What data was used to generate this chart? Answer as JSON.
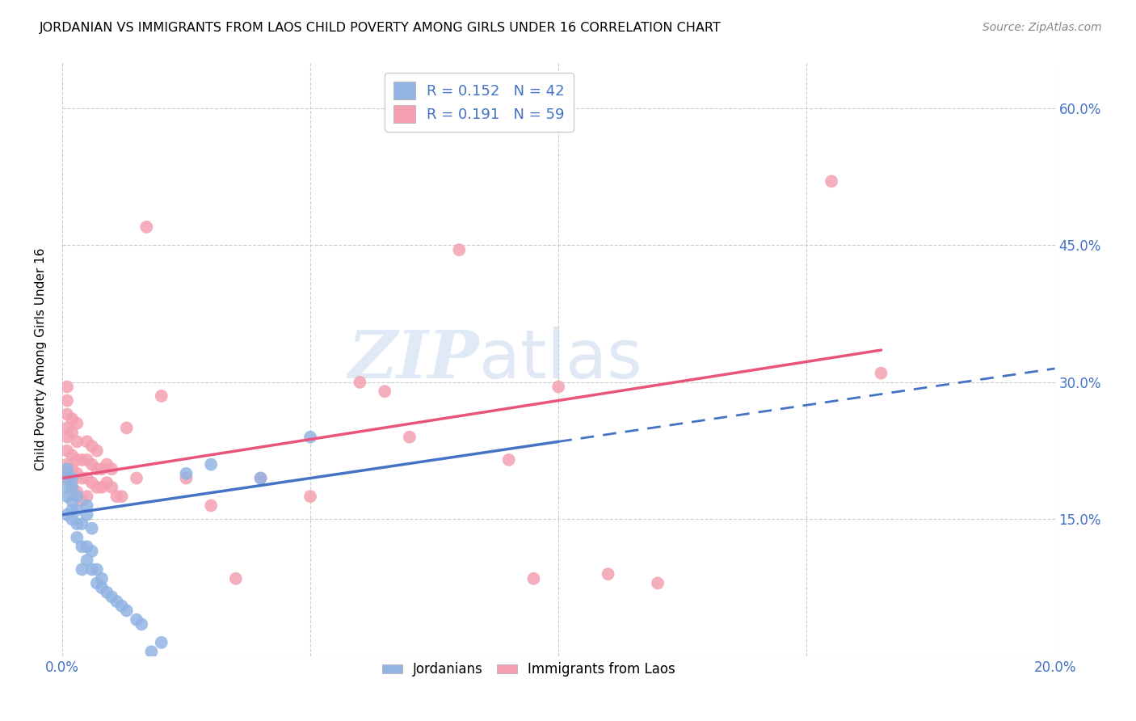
{
  "title": "JORDANIAN VS IMMIGRANTS FROM LAOS CHILD POVERTY AMONG GIRLS UNDER 16 CORRELATION CHART",
  "source": "Source: ZipAtlas.com",
  "ylabel": "Child Poverty Among Girls Under 16",
  "xmin": 0.0,
  "xmax": 0.2,
  "ymin": 0.0,
  "ymax": 0.65,
  "xticks": [
    0.0,
    0.05,
    0.1,
    0.15,
    0.2
  ],
  "xtick_labels": [
    "0.0%",
    "",
    "",
    "",
    "20.0%"
  ],
  "yticks": [
    0.0,
    0.15,
    0.3,
    0.45,
    0.6
  ],
  "ytick_labels": [
    "",
    "15.0%",
    "30.0%",
    "45.0%",
    "60.0%"
  ],
  "legend_R_blue": "0.152",
  "legend_N_blue": "42",
  "legend_R_pink": "0.191",
  "legend_N_pink": "59",
  "color_blue": "#92b4e3",
  "color_pink": "#f4a0b0",
  "color_blue_line": "#4472c4",
  "color_pink_line": "#e8547a",
  "watermark_zip": "ZIP",
  "watermark_atlas": "atlas",
  "jordanians_x": [
    0.001,
    0.001,
    0.001,
    0.001,
    0.001,
    0.001,
    0.002,
    0.002,
    0.002,
    0.002,
    0.002,
    0.003,
    0.003,
    0.003,
    0.003,
    0.004,
    0.004,
    0.004,
    0.005,
    0.005,
    0.005,
    0.005,
    0.006,
    0.006,
    0.006,
    0.007,
    0.007,
    0.008,
    0.008,
    0.009,
    0.01,
    0.011,
    0.012,
    0.013,
    0.015,
    0.016,
    0.018,
    0.02,
    0.025,
    0.03,
    0.04,
    0.05
  ],
  "jordanians_y": [
    0.155,
    0.175,
    0.185,
    0.195,
    0.2,
    0.205,
    0.15,
    0.16,
    0.17,
    0.185,
    0.195,
    0.13,
    0.145,
    0.16,
    0.175,
    0.095,
    0.12,
    0.145,
    0.105,
    0.12,
    0.155,
    0.165,
    0.095,
    0.115,
    0.14,
    0.08,
    0.095,
    0.075,
    0.085,
    0.07,
    0.065,
    0.06,
    0.055,
    0.05,
    0.04,
    0.035,
    0.005,
    0.015,
    0.2,
    0.21,
    0.195,
    0.24
  ],
  "laos_x": [
    0.001,
    0.001,
    0.001,
    0.001,
    0.001,
    0.001,
    0.001,
    0.001,
    0.002,
    0.002,
    0.002,
    0.002,
    0.002,
    0.003,
    0.003,
    0.003,
    0.003,
    0.003,
    0.004,
    0.004,
    0.004,
    0.005,
    0.005,
    0.005,
    0.005,
    0.006,
    0.006,
    0.006,
    0.007,
    0.007,
    0.007,
    0.008,
    0.008,
    0.009,
    0.009,
    0.01,
    0.01,
    0.011,
    0.012,
    0.013,
    0.015,
    0.017,
    0.02,
    0.025,
    0.03,
    0.035,
    0.04,
    0.05,
    0.06,
    0.065,
    0.07,
    0.08,
    0.09,
    0.095,
    0.1,
    0.11,
    0.12,
    0.155,
    0.165
  ],
  "laos_y": [
    0.195,
    0.21,
    0.225,
    0.24,
    0.25,
    0.265,
    0.28,
    0.295,
    0.19,
    0.205,
    0.22,
    0.245,
    0.26,
    0.18,
    0.2,
    0.215,
    0.235,
    0.255,
    0.17,
    0.195,
    0.215,
    0.175,
    0.195,
    0.215,
    0.235,
    0.19,
    0.21,
    0.23,
    0.185,
    0.205,
    0.225,
    0.185,
    0.205,
    0.19,
    0.21,
    0.185,
    0.205,
    0.175,
    0.175,
    0.25,
    0.195,
    0.47,
    0.285,
    0.195,
    0.165,
    0.085,
    0.195,
    0.175,
    0.3,
    0.29,
    0.24,
    0.445,
    0.215,
    0.085,
    0.295,
    0.09,
    0.08,
    0.52,
    0.31
  ]
}
